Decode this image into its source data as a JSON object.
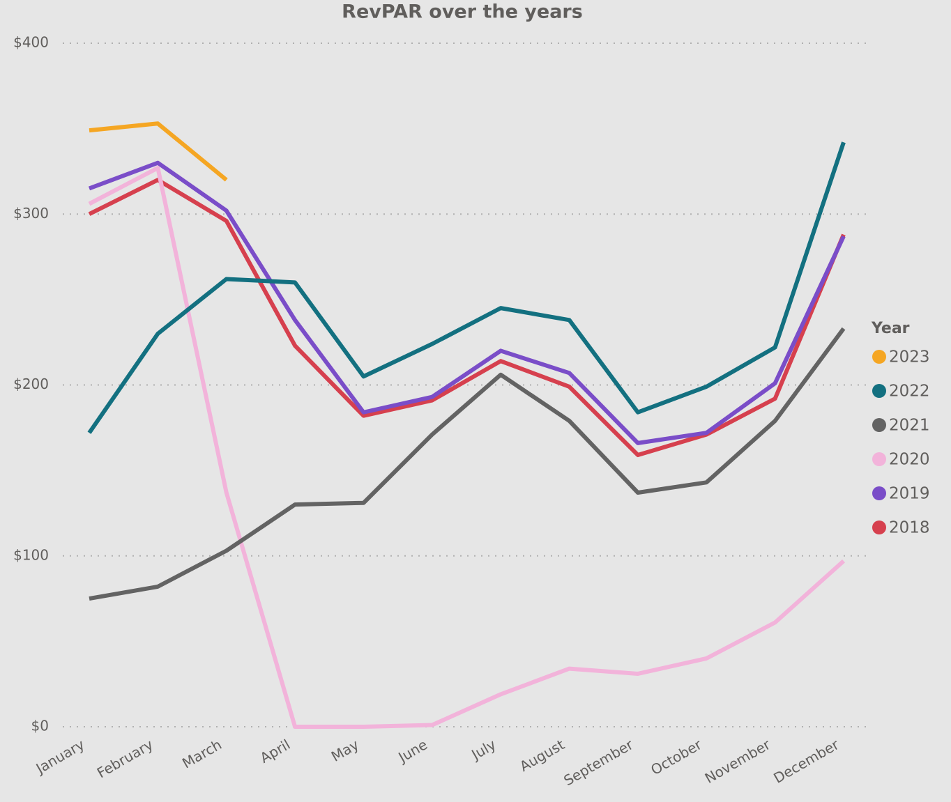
{
  "chart_data": {
    "type": "line",
    "title": "RevPAR over the years",
    "categories": [
      "January",
      "February",
      "March",
      "April",
      "May",
      "June",
      "July",
      "August",
      "September",
      "October",
      "November",
      "December"
    ],
    "series": [
      {
        "name": "2023",
        "color": "#f5a623",
        "values": [
          349,
          353,
          320,
          null,
          null,
          null,
          null,
          null,
          null,
          null,
          null,
          null
        ]
      },
      {
        "name": "2022",
        "color": "#137080",
        "values": [
          172,
          230,
          262,
          260,
          205,
          224,
          245,
          238,
          184,
          199,
          222,
          342
        ]
      },
      {
        "name": "2021",
        "color": "#636363",
        "values": [
          75,
          82,
          103,
          130,
          131,
          171,
          206,
          179,
          137,
          143,
          179,
          233
        ]
      },
      {
        "name": "2020",
        "color": "#f2b3da",
        "values": [
          306,
          327,
          137,
          0,
          0,
          1,
          19,
          34,
          31,
          40,
          61,
          97
        ]
      },
      {
        "name": "2019",
        "color": "#7a4dc8",
        "values": [
          315,
          330,
          302,
          238,
          184,
          193,
          220,
          207,
          166,
          172,
          201,
          287
        ]
      },
      {
        "name": "2018",
        "color": "#d6404e",
        "values": [
          300,
          320,
          296,
          223,
          182,
          191,
          214,
          199,
          159,
          171,
          192,
          288
        ]
      }
    ],
    "ylim": [
      0,
      400
    ],
    "yticks": [
      {
        "value": 0,
        "label": "$0"
      },
      {
        "value": 100,
        "label": "$100"
      },
      {
        "value": 200,
        "label": "$200"
      },
      {
        "value": 300,
        "label": "$300"
      },
      {
        "value": 400,
        "label": "$400"
      }
    ],
    "grid": true,
    "legend_title": "Year",
    "legend_position": "right"
  }
}
